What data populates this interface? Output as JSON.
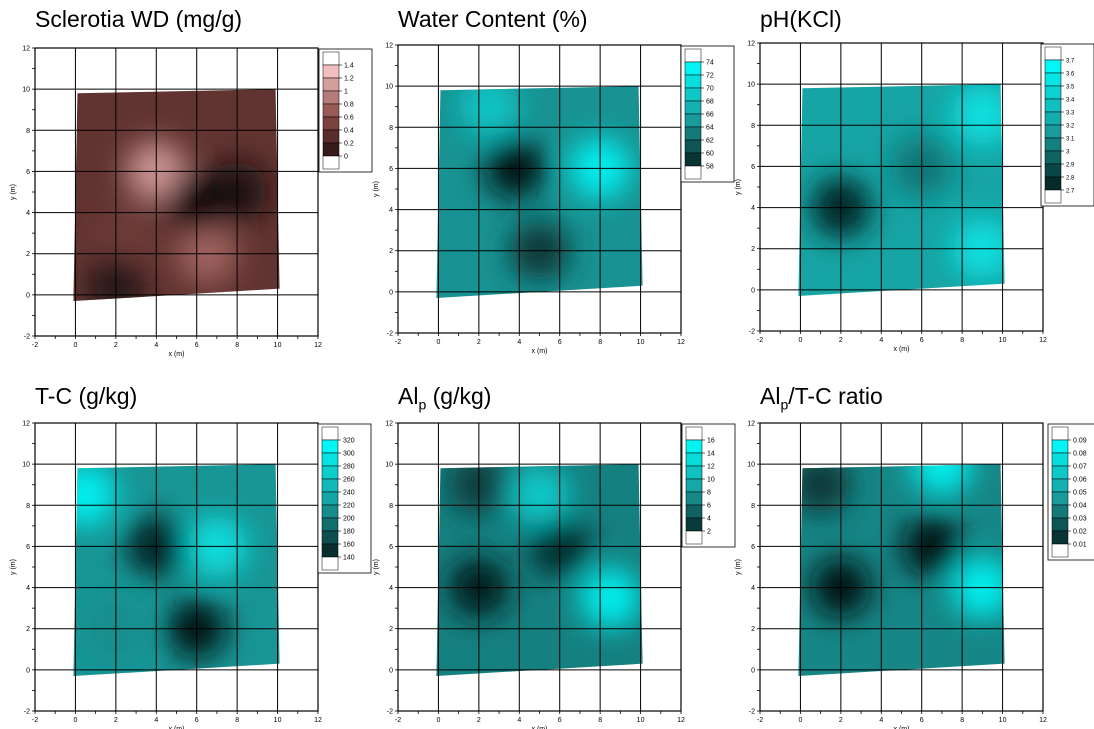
{
  "chart_data": [
    {
      "type": "heatmap",
      "title": "Sclerotia WD (mg/g)",
      "xlabel": "x (m)",
      "ylabel": "y (m)",
      "xlim": [
        -2,
        12
      ],
      "ylim": [
        -2,
        12
      ],
      "x_ticks": [
        "-2",
        "0",
        "2",
        "4",
        "6",
        "8",
        "10",
        "12"
      ],
      "y_ticks": [
        "-2",
        "0",
        "2",
        "4",
        "6",
        "8",
        "10",
        "12"
      ],
      "grid": true,
      "colorbar_ticks": [
        "1.4",
        "1.2",
        "1",
        "0.8",
        "0.6",
        "0.4",
        "0.2",
        "0"
      ],
      "colorbar_range": [
        0,
        1.5
      ],
      "colors": {
        "low": "#000000",
        "high": "#ffd0d0",
        "mid": "#8c4a46"
      },
      "hotspots": [
        {
          "x": 4.0,
          "y": 6.0,
          "value": 1.2
        },
        {
          "x": 6.5,
          "y": 2.0,
          "value": 0.9
        },
        {
          "x": 2.5,
          "y": 2.5,
          "value": 0.6
        },
        {
          "x": 6.0,
          "y": 4.5,
          "value": 0.0
        },
        {
          "x": 8.0,
          "y": 5.0,
          "value": 0.1
        },
        {
          "x": 2.0,
          "y": 0.5,
          "value": 0.2
        }
      ]
    },
    {
      "type": "heatmap",
      "title": "Water Content (%)",
      "xlabel": "x (m)",
      "ylabel": "y (m)",
      "xlim": [
        -2,
        12
      ],
      "ylim": [
        -2,
        12
      ],
      "x_ticks": [
        "-2",
        "0",
        "2",
        "4",
        "6",
        "8",
        "10",
        "12"
      ],
      "y_ticks": [
        "-2",
        "0",
        "2",
        "4",
        "6",
        "8",
        "10",
        "12"
      ],
      "grid": true,
      "colorbar_ticks": [
        "74",
        "72",
        "70",
        "68",
        "66",
        "64",
        "62",
        "60",
        "58"
      ],
      "colorbar_range": [
        57,
        75
      ],
      "colors": {
        "low": "#000000",
        "high": "#00ffff",
        "mid": "#199b9b"
      },
      "hotspots": [
        {
          "x": 3.8,
          "y": 6.0,
          "value": 58
        },
        {
          "x": 5.0,
          "y": 2.0,
          "value": 60
        },
        {
          "x": 8.0,
          "y": 6.0,
          "value": 74
        },
        {
          "x": 2.5,
          "y": 9.0,
          "value": 70
        }
      ]
    },
    {
      "type": "heatmap",
      "title": "pH(KCl)",
      "xlabel": "x (m)",
      "ylabel": "y (m)",
      "xlim": [
        -2,
        12
      ],
      "ylim": [
        -2,
        12
      ],
      "x_ticks": [
        "-2",
        "0",
        "2",
        "4",
        "6",
        "8",
        "10",
        "12"
      ],
      "y_ticks": [
        "-2",
        "0",
        "2",
        "4",
        "6",
        "8",
        "10",
        "12"
      ],
      "grid": true,
      "colorbar_ticks": [
        "3.7",
        "3.6",
        "3.5",
        "3.4",
        "3.3",
        "3.2",
        "3.1",
        "3",
        "2.9",
        "2.8",
        "2.7"
      ],
      "colorbar_range": [
        2.65,
        3.75
      ],
      "colors": {
        "low": "#000000",
        "high": "#00ffff",
        "mid": "#199b9b"
      },
      "hotspots": [
        {
          "x": 2.0,
          "y": 4.0,
          "value": 2.75
        },
        {
          "x": 6.0,
          "y": 6.0,
          "value": 3.05
        },
        {
          "x": 9.0,
          "y": 8.5,
          "value": 3.6
        },
        {
          "x": 9.0,
          "y": 2.0,
          "value": 3.6
        }
      ]
    },
    {
      "type": "heatmap",
      "title": "T-C (g/kg)",
      "xlabel": "x (m)",
      "ylabel": "y (m)",
      "xlim": [
        -2,
        12
      ],
      "ylim": [
        -2,
        12
      ],
      "x_ticks": [
        "-2",
        "0",
        "2",
        "4",
        "6",
        "8",
        "10",
        "12"
      ],
      "y_ticks": [
        "-2",
        "0",
        "2",
        "4",
        "6",
        "8",
        "10",
        "12"
      ],
      "grid": true,
      "colorbar_ticks": [
        "320",
        "300",
        "280",
        "260",
        "240",
        "220",
        "200",
        "180",
        "160",
        "140"
      ],
      "colorbar_range": [
        130,
        330
      ],
      "colors": {
        "low": "#000000",
        "high": "#00ffff",
        "mid": "#199b9b"
      },
      "hotspots": [
        {
          "x": 4.0,
          "y": 6.0,
          "value": 150
        },
        {
          "x": 6.0,
          "y": 2.0,
          "value": 140
        },
        {
          "x": 0.5,
          "y": 8.5,
          "value": 320
        },
        {
          "x": 7.0,
          "y": 6.0,
          "value": 300
        },
        {
          "x": 2.0,
          "y": 2.0,
          "value": 220
        }
      ]
    },
    {
      "type": "heatmap",
      "title": "Al",
      "title_sub": "p",
      "title_rest": " (g/kg)",
      "xlabel": "x (m)",
      "ylabel": "y (m)",
      "xlim": [
        -2,
        12
      ],
      "ylim": [
        -2,
        12
      ],
      "x_ticks": [
        "-2",
        "0",
        "2",
        "4",
        "6",
        "8",
        "10",
        "12"
      ],
      "y_ticks": [
        "-2",
        "0",
        "2",
        "4",
        "6",
        "8",
        "10",
        "12"
      ],
      "grid": true,
      "colorbar_ticks": [
        "16",
        "14",
        "12",
        "10",
        "8",
        "6",
        "4",
        "2"
      ],
      "colorbar_range": [
        1,
        17
      ],
      "colors": {
        "low": "#000000",
        "high": "#00ffff",
        "mid": "#199b9b"
      },
      "hotspots": [
        {
          "x": 2.0,
          "y": 4.0,
          "value": 2
        },
        {
          "x": 6.0,
          "y": 6.0,
          "value": 3
        },
        {
          "x": 2.0,
          "y": 9.0,
          "value": 4
        },
        {
          "x": 8.5,
          "y": 3.5,
          "value": 16
        },
        {
          "x": 5.0,
          "y": 8.5,
          "value": 13
        }
      ]
    },
    {
      "type": "heatmap",
      "title": "Al",
      "title_sub": "p",
      "title_rest": "/T-C ratio",
      "xlabel": "x (m)",
      "ylabel": "y (m)",
      "xlim": [
        -2,
        12
      ],
      "ylim": [
        -2,
        12
      ],
      "x_ticks": [
        "-2",
        "0",
        "2",
        "4",
        "6",
        "8",
        "10",
        "12"
      ],
      "y_ticks": [
        "-2",
        "0",
        "2",
        "4",
        "6",
        "8",
        "10",
        "12"
      ],
      "grid": true,
      "colorbar_ticks": [
        "0.09",
        "0.08",
        "0.07",
        "0.06",
        "0.05",
        "0.04",
        "0.03",
        "0.02",
        "0.01"
      ],
      "colorbar_range": [
        0.005,
        0.095
      ],
      "colors": {
        "low": "#000000",
        "high": "#00ffff",
        "mid": "#199b9b"
      },
      "hotspots": [
        {
          "x": 2.0,
          "y": 4.0,
          "value": 0.01
        },
        {
          "x": 6.5,
          "y": 6.0,
          "value": 0.01
        },
        {
          "x": 1.0,
          "y": 9.0,
          "value": 0.02
        },
        {
          "x": 9.0,
          "y": 4.0,
          "value": 0.09
        },
        {
          "x": 7.0,
          "y": 10.0,
          "value": 0.09
        }
      ]
    }
  ]
}
